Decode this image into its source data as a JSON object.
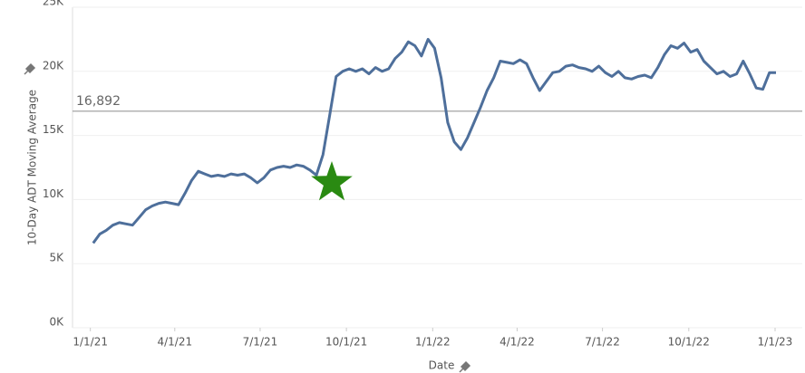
{
  "chart_data": {
    "type": "line",
    "y_label": "10-Day ADT Moving Average",
    "x_label": "Date",
    "x": [
      "2021-01-04",
      "2021-01-11",
      "2021-01-18",
      "2021-01-25",
      "2021-02-01",
      "2021-02-08",
      "2021-02-15",
      "2021-02-22",
      "2021-03-01",
      "2021-03-08",
      "2021-03-15",
      "2021-03-22",
      "2021-03-29",
      "2021-04-05",
      "2021-04-12",
      "2021-04-19",
      "2021-04-26",
      "2021-05-03",
      "2021-05-10",
      "2021-05-17",
      "2021-05-24",
      "2021-05-31",
      "2021-06-07",
      "2021-06-14",
      "2021-06-21",
      "2021-06-28",
      "2021-07-05",
      "2021-07-12",
      "2021-07-19",
      "2021-07-26",
      "2021-08-02",
      "2021-08-09",
      "2021-08-16",
      "2021-08-23",
      "2021-08-30",
      "2021-09-06",
      "2021-09-13",
      "2021-09-20",
      "2021-09-27",
      "2021-10-04",
      "2021-10-11",
      "2021-10-18",
      "2021-10-25",
      "2021-11-01",
      "2021-11-08",
      "2021-11-15",
      "2021-11-22",
      "2021-11-29",
      "2021-12-06",
      "2021-12-13",
      "2021-12-20",
      "2021-12-27",
      "2022-01-03",
      "2022-01-10",
      "2022-01-17",
      "2022-01-24",
      "2022-01-31",
      "2022-02-07",
      "2022-02-14",
      "2022-02-21",
      "2022-02-28",
      "2022-03-07",
      "2022-03-14",
      "2022-03-21",
      "2022-03-28",
      "2022-04-04",
      "2022-04-11",
      "2022-04-18",
      "2022-04-25",
      "2022-05-02",
      "2022-05-09",
      "2022-05-16",
      "2022-05-23",
      "2022-05-30",
      "2022-06-06",
      "2022-06-13",
      "2022-06-20",
      "2022-06-27",
      "2022-07-04",
      "2022-07-11",
      "2022-07-18",
      "2022-07-25",
      "2022-08-01",
      "2022-08-08",
      "2022-08-15",
      "2022-08-22",
      "2022-08-29",
      "2022-09-05",
      "2022-09-12",
      "2022-09-19",
      "2022-09-26",
      "2022-10-03",
      "2022-10-10",
      "2022-10-17",
      "2022-10-24",
      "2022-10-31",
      "2022-11-07",
      "2022-11-14",
      "2022-11-21",
      "2022-11-28",
      "2022-12-05",
      "2022-12-12",
      "2022-12-19",
      "2022-12-26",
      "2023-01-02"
    ],
    "series": [
      {
        "color": "#4e6f9b",
        "values": [
          6600,
          7300,
          7600,
          8000,
          8200,
          8100,
          8000,
          8600,
          9200,
          9500,
          9700,
          9800,
          9700,
          9600,
          10500,
          11500,
          12200,
          12000,
          11800,
          11900,
          11800,
          12000,
          11900,
          12000,
          11700,
          11300,
          11700,
          12300,
          12500,
          12600,
          12500,
          12700,
          12600,
          12300,
          11900,
          13500,
          16500,
          19600,
          20000,
          20200,
          20000,
          20200,
          19800,
          20300,
          20000,
          20200,
          21000,
          21500,
          22300,
          22000,
          21200,
          22500,
          21800,
          19500,
          16000,
          14500,
          13900,
          14800,
          16000,
          17200,
          18500,
          19500,
          20800,
          20700,
          20600,
          20900,
          20600,
          19500,
          18500,
          19200,
          19900,
          20000,
          20400,
          20500,
          20300,
          20200,
          20000,
          20400,
          19900,
          19600,
          20000,
          19500,
          19400,
          19600,
          19700,
          19500,
          20300,
          21300,
          22000,
          21800,
          22200,
          21500,
          21700,
          20800,
          20300,
          19800,
          20000,
          19600,
          19800,
          20800,
          19800,
          18700,
          18600,
          19900,
          19900
        ]
      }
    ],
    "xlim": [
      "2020-12-13",
      "2023-01-30"
    ],
    "xticks": [
      {
        "value": "2021-01-01",
        "label": "1/1/21"
      },
      {
        "value": "2021-04-01",
        "label": "4/1/21"
      },
      {
        "value": "2021-07-01",
        "label": "7/1/21"
      },
      {
        "value": "2021-10-01",
        "label": "10/1/21"
      },
      {
        "value": "2022-01-01",
        "label": "1/1/22"
      },
      {
        "value": "2022-04-01",
        "label": "4/1/22"
      },
      {
        "value": "2022-07-01",
        "label": "7/1/22"
      },
      {
        "value": "2022-10-01",
        "label": "10/1/22"
      },
      {
        "value": "2023-01-01",
        "label": "1/1/23"
      }
    ],
    "ylim": [
      0,
      25000
    ],
    "yticks": [
      {
        "value": 0,
        "label": "0K"
      },
      {
        "value": 5000,
        "label": "5K"
      },
      {
        "value": 10000,
        "label": "10K"
      },
      {
        "value": 15000,
        "label": "15K"
      },
      {
        "value": 20000,
        "label": "20K"
      },
      {
        "value": 25000,
        "label": "25K"
      }
    ],
    "grid": true,
    "reference_line": {
      "value": 16892,
      "label": "16,892"
    }
  }
}
